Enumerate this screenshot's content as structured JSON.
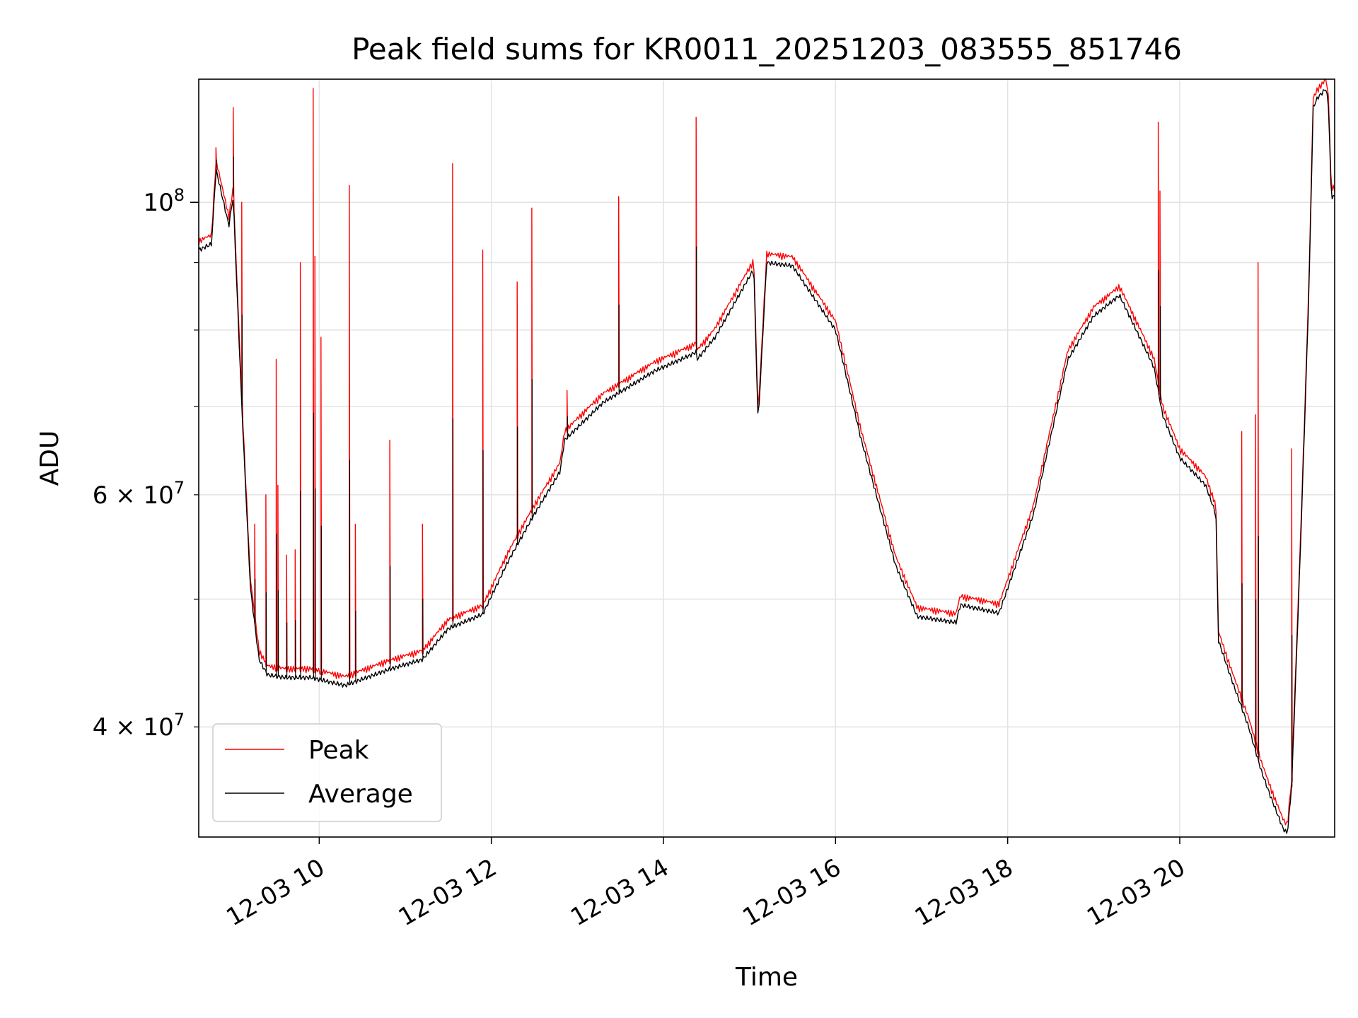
{
  "chart_data": {
    "type": "line",
    "title": "Peak field sums for KR0011_20251203_083555_851746",
    "xlabel": "Time",
    "ylabel": "ADU",
    "yscale": "log",
    "xlim": [
      8.6,
      21.8
    ],
    "ylim": [
      33000000,
      124000000
    ],
    "grid": true,
    "legend_position": "lower-left",
    "x_ticks": [
      {
        "value": 10,
        "label": "12-03 10"
      },
      {
        "value": 12,
        "label": "12-03 12"
      },
      {
        "value": 14,
        "label": "12-03 14"
      },
      {
        "value": 16,
        "label": "12-03 16"
      },
      {
        "value": 18,
        "label": "12-03 18"
      },
      {
        "value": 20,
        "label": "12-03 20"
      }
    ],
    "y_major_ticks": [
      {
        "value": 100000000,
        "base": "10",
        "exp": "8"
      }
    ],
    "y_minor_ticks": [
      {
        "value": 40000000,
        "mant": "4",
        "base": "10",
        "exp": "7"
      },
      {
        "value": 60000000,
        "mant": "6",
        "base": "10",
        "exp": "7"
      }
    ],
    "y_minor_grid": [
      40000000,
      50000000,
      60000000,
      70000000,
      80000000,
      90000000
    ],
    "series": [
      {
        "name": "Average",
        "color": "#000000",
        "x": [
          8.6,
          8.75,
          8.8,
          8.95,
          9.0,
          9.1,
          9.2,
          9.3,
          9.4,
          9.6,
          9.9,
          10.3,
          10.8,
          11.2,
          11.5,
          11.9,
          12.2,
          12.5,
          12.8,
          12.85,
          13.3,
          13.9,
          14.3,
          14.38,
          14.39,
          14.6,
          15.05,
          15.1,
          15.2,
          15.5,
          16.0,
          16.3,
          16.7,
          16.95,
          17.4,
          17.45,
          17.9,
          18.3,
          18.7,
          19.0,
          19.3,
          19.7,
          19.8,
          20.0,
          20.3,
          20.42,
          20.45,
          20.6,
          20.8,
          20.95,
          21.05,
          21.2,
          21.25,
          21.3,
          21.4,
          21.5,
          21.55,
          21.6,
          21.7,
          21.73,
          21.76
        ],
        "values": [
          92000000,
          93000000,
          106000000,
          96000000,
          101000000,
          70000000,
          51000000,
          45000000,
          43800000,
          43600000,
          43600000,
          43000000,
          44200000,
          45000000,
          47500000,
          48700000,
          53500000,
          58000000,
          62500000,
          66000000,
          70500000,
          74500000,
          76500000,
          77000000,
          76000000,
          79000000,
          89000000,
          68000000,
          90000000,
          89500000,
          80000000,
          66000000,
          53000000,
          48500000,
          48000000,
          49500000,
          48800000,
          58000000,
          76000000,
          82000000,
          85000000,
          75000000,
          69000000,
          64000000,
          61000000,
          58000000,
          46500000,
          43500000,
          40000000,
          37000000,
          35500000,
          33500000,
          33200000,
          36000000,
          54000000,
          85000000,
          118000000,
          120000000,
          122000000,
          118000000,
          101000000
        ]
      },
      {
        "name": "Peak",
        "color": "#ff0000",
        "spikes": [
          {
            "x": 8.8,
            "value": 110000000
          },
          {
            "x": 9.0,
            "value": 118000000
          },
          {
            "x": 9.1,
            "value": 100000000
          },
          {
            "x": 9.25,
            "value": 57000000
          },
          {
            "x": 9.38,
            "value": 60000000
          },
          {
            "x": 9.5,
            "value": 76000000
          },
          {
            "x": 9.52,
            "value": 61000000
          },
          {
            "x": 9.62,
            "value": 54000000
          },
          {
            "x": 9.72,
            "value": 54500000
          },
          {
            "x": 9.78,
            "value": 90000000
          },
          {
            "x": 9.93,
            "value": 122000000
          },
          {
            "x": 9.95,
            "value": 91000000
          },
          {
            "x": 10.02,
            "value": 79000000
          },
          {
            "x": 10.35,
            "value": 103000000
          },
          {
            "x": 10.42,
            "value": 57000000
          },
          {
            "x": 10.82,
            "value": 66000000
          },
          {
            "x": 11.2,
            "value": 57000000
          },
          {
            "x": 11.55,
            "value": 107000000
          },
          {
            "x": 11.9,
            "value": 92000000
          },
          {
            "x": 12.3,
            "value": 87000000
          },
          {
            "x": 12.47,
            "value": 99000000
          },
          {
            "x": 12.88,
            "value": 72000000
          },
          {
            "x": 13.48,
            "value": 101000000
          },
          {
            "x": 14.38,
            "value": 116000000
          },
          {
            "x": 19.75,
            "value": 115000000
          },
          {
            "x": 19.77,
            "value": 102000000
          },
          {
            "x": 20.72,
            "value": 67000000
          },
          {
            "x": 20.88,
            "value": 69000000
          },
          {
            "x": 20.91,
            "value": 90000000
          },
          {
            "x": 21.3,
            "value": 65000000
          }
        ]
      }
    ]
  }
}
